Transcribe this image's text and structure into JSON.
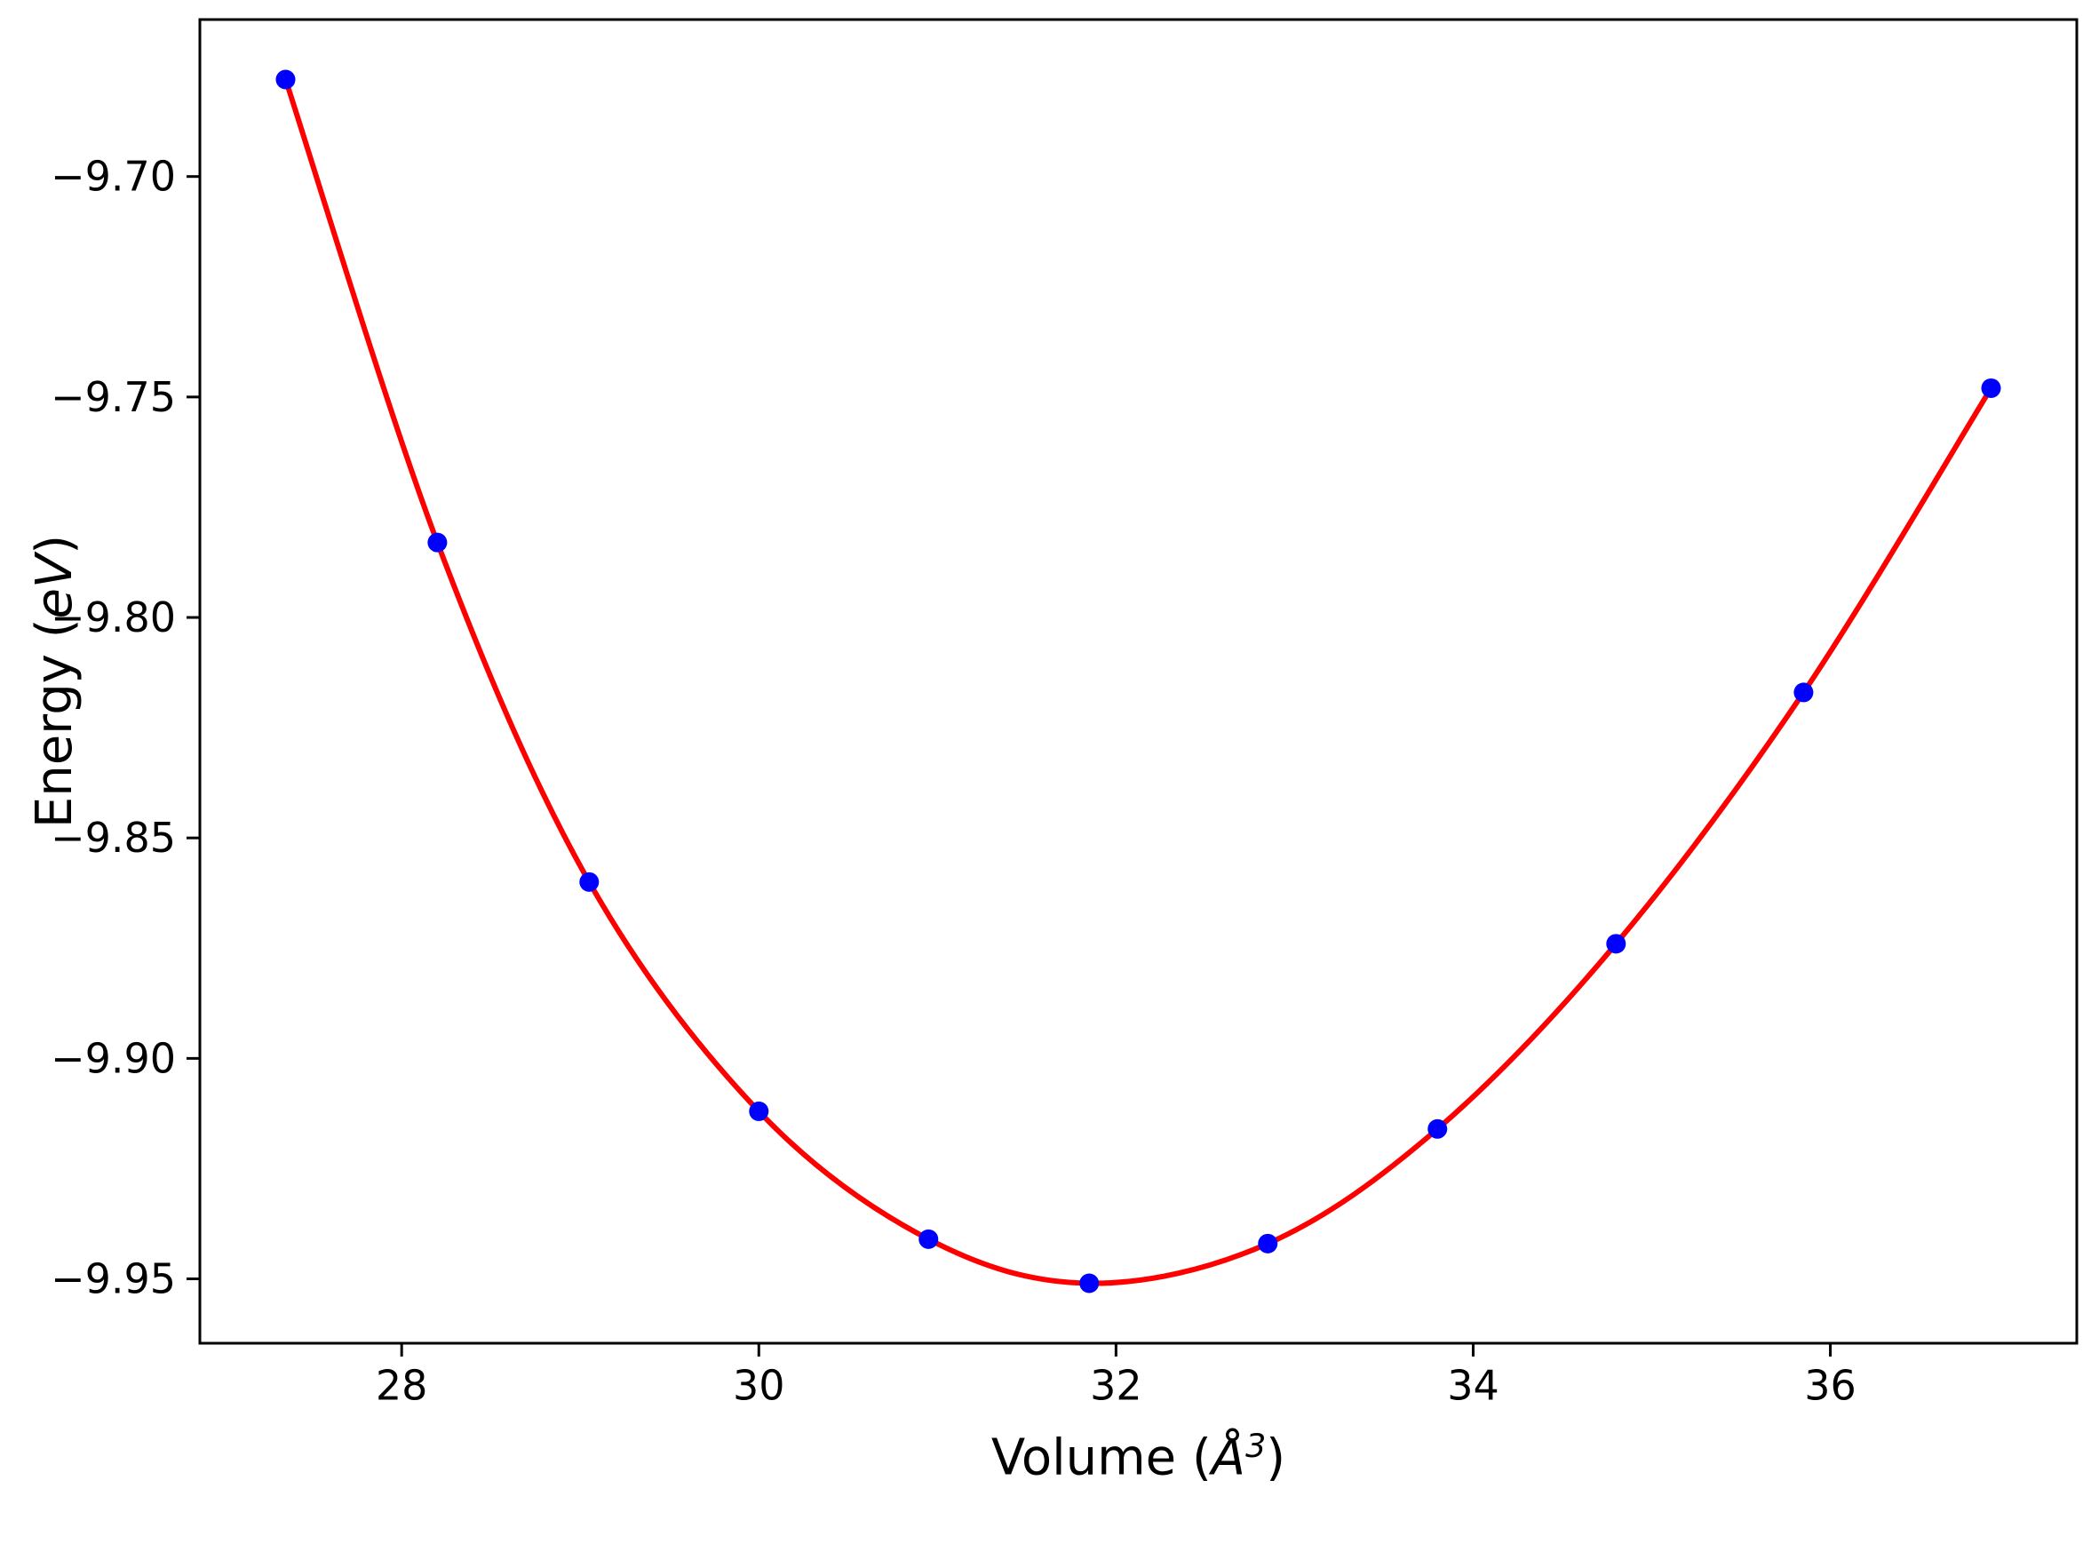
{
  "chart_data": {
    "type": "scatter",
    "title": "",
    "xlabel": {
      "prefix": "Volume (",
      "symbol": "Å",
      "exponent": "3",
      "suffix": ")"
    },
    "ylabel": {
      "prefix": "Energy (",
      "symbol": "eV",
      "suffix": ")"
    },
    "xlim": [
      26.87,
      37.38
    ],
    "ylim": [
      -9.9646,
      -9.6644
    ],
    "grid": false,
    "legend": "none",
    "x_ticks": [
      {
        "value": 28,
        "label": "28"
      },
      {
        "value": 30,
        "label": "30"
      },
      {
        "value": 32,
        "label": "32"
      },
      {
        "value": 34,
        "label": "34"
      },
      {
        "value": 36,
        "label": "36"
      }
    ],
    "y_ticks": [
      {
        "value": -9.7,
        "label": "−9.70"
      },
      {
        "value": -9.75,
        "label": "−9.75"
      },
      {
        "value": -9.8,
        "label": "−9.80"
      },
      {
        "value": -9.85,
        "label": "−9.85"
      },
      {
        "value": -9.9,
        "label": "−9.90"
      },
      {
        "value": -9.95,
        "label": "−9.95"
      }
    ],
    "series": [
      {
        "name": "eos-fit-curve",
        "type": "line",
        "color": "#ff0000",
        "line_width": 6
      },
      {
        "name": "calculated-points",
        "type": "scatter",
        "color": "#0000ff",
        "marker": "circle",
        "marker_radius": 11,
        "x": [
          27.35,
          28.2,
          29.05,
          30.0,
          30.95,
          31.85,
          32.85,
          33.8,
          34.8,
          35.85,
          36.9
        ],
        "y": [
          -9.678,
          -9.783,
          -9.86,
          -9.912,
          -9.941,
          -9.951,
          -9.942,
          -9.916,
          -9.874,
          -9.817,
          -9.748
        ]
      }
    ]
  },
  "styles": {
    "background": "#ffffff",
    "spine_color": "#000000",
    "tick_color": "#000000",
    "text_color": "#000000"
  }
}
